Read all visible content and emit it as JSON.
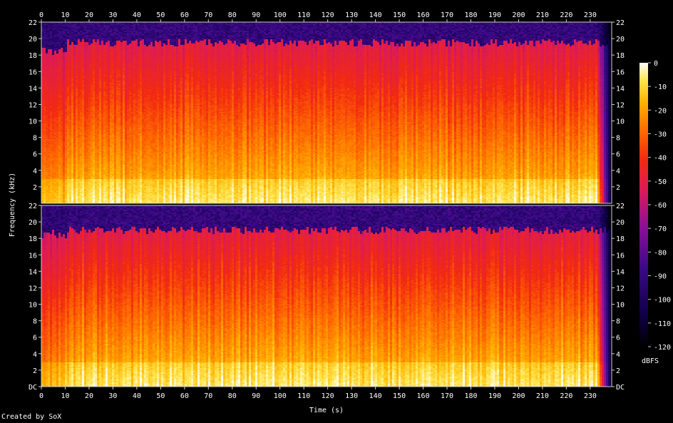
{
  "chart_data": {
    "type": "heatmap",
    "title": "",
    "xlabel": "Time (s)",
    "ylabel": "Frequency (kHz)",
    "xlim": [
      0,
      239
    ],
    "ylim": [
      0,
      22
    ],
    "x_ticks": [
      0,
      10,
      20,
      30,
      40,
      50,
      60,
      70,
      80,
      90,
      100,
      110,
      120,
      130,
      140,
      150,
      160,
      170,
      180,
      190,
      200,
      210,
      220,
      230
    ],
    "y_ticks": [
      {
        "value": 0,
        "label": "DC"
      },
      {
        "value": 2,
        "label": "2"
      },
      {
        "value": 4,
        "label": "4"
      },
      {
        "value": 6,
        "label": "6"
      },
      {
        "value": 8,
        "label": "8"
      },
      {
        "value": 10,
        "label": "10"
      },
      {
        "value": 12,
        "label": "12"
      },
      {
        "value": 14,
        "label": "14"
      },
      {
        "value": 16,
        "label": "16"
      },
      {
        "value": 18,
        "label": "18"
      },
      {
        "value": 20,
        "label": "20"
      },
      {
        "value": 22,
        "label": "22"
      }
    ],
    "channels": [
      {
        "cutoff_khz": 19.5,
        "intro_end_s": 11,
        "fade_start_s": 233,
        "fade_end_s": 239
      },
      {
        "cutoff_khz": 19.0,
        "intro_end_s": 11,
        "fade_start_s": 233,
        "fade_end_s": 239
      }
    ],
    "colorbar": {
      "label": "dBFS",
      "range": [
        -120,
        0
      ],
      "ticks": [
        0,
        -10,
        -20,
        -30,
        -40,
        -50,
        -60,
        -70,
        -80,
        -90,
        -100,
        -110,
        -120
      ]
    },
    "grid": false,
    "legend": "right"
  },
  "footer": {
    "credit": "Created by SoX"
  }
}
